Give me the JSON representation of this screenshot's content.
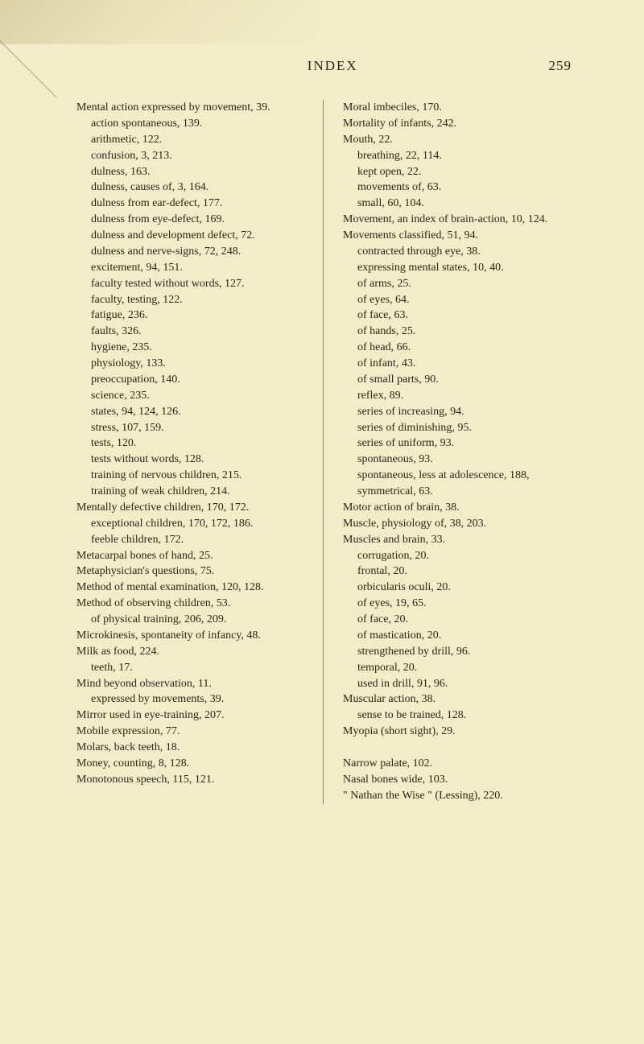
{
  "header": {
    "title": "INDEX",
    "pageNumber": "259"
  },
  "leftColumn": {
    "entries": [
      {
        "text": "Mental action expressed by movement, 39.",
        "type": "entry"
      },
      {
        "text": "action spontaneous, 139.",
        "type": "sub"
      },
      {
        "text": "arithmetic, 122.",
        "type": "sub"
      },
      {
        "text": "confusion, 3, 213.",
        "type": "sub"
      },
      {
        "text": "dulness, 163.",
        "type": "sub"
      },
      {
        "text": "dulness, causes of, 3, 164.",
        "type": "sub"
      },
      {
        "text": "dulness from ear-defect, 177.",
        "type": "sub"
      },
      {
        "text": "dulness from eye-defect, 169.",
        "type": "sub"
      },
      {
        "text": "dulness and development defect, 72.",
        "type": "sub"
      },
      {
        "text": "dulness and nerve-signs, 72, 248.",
        "type": "sub"
      },
      {
        "text": "excitement, 94, 151.",
        "type": "sub"
      },
      {
        "text": "faculty tested without words, 127.",
        "type": "sub"
      },
      {
        "text": "faculty, testing, 122.",
        "type": "sub"
      },
      {
        "text": "fatigue, 236.",
        "type": "sub"
      },
      {
        "text": "faults, 326.",
        "type": "sub"
      },
      {
        "text": "hygiene, 235.",
        "type": "sub"
      },
      {
        "text": "physiology, 133.",
        "type": "sub"
      },
      {
        "text": "preoccupation, 140.",
        "type": "sub"
      },
      {
        "text": "science, 235.",
        "type": "sub"
      },
      {
        "text": "states, 94, 124, 126.",
        "type": "sub"
      },
      {
        "text": "stress, 107, 159.",
        "type": "sub"
      },
      {
        "text": "tests, 120.",
        "type": "sub"
      },
      {
        "text": "tests without words, 128.",
        "type": "sub"
      },
      {
        "text": "training of nervous children, 215.",
        "type": "sub"
      },
      {
        "text": "training of weak children, 214.",
        "type": "sub"
      },
      {
        "text": "Mentally defective children, 170, 172.",
        "type": "entry"
      },
      {
        "text": "exceptional children, 170, 172, 186.",
        "type": "sub"
      },
      {
        "text": "feeble children, 172.",
        "type": "sub"
      },
      {
        "text": "Metacarpal bones of hand, 25.",
        "type": "entry"
      },
      {
        "text": "Metaphysician's questions, 75.",
        "type": "entry"
      },
      {
        "text": "Method of mental examination, 120, 128.",
        "type": "entry"
      },
      {
        "text": "Method of observing children, 53.",
        "type": "entry"
      },
      {
        "text": "of physical training, 206, 209.",
        "type": "sub"
      },
      {
        "text": "Microkinesis, spontaneity of infancy, 48.",
        "type": "entry"
      },
      {
        "text": "Milk as food, 224.",
        "type": "entry"
      },
      {
        "text": "teeth, 17.",
        "type": "sub"
      },
      {
        "text": "Mind beyond observation, 11.",
        "type": "entry"
      },
      {
        "text": "expressed by movements, 39.",
        "type": "sub"
      },
      {
        "text": "Mirror used in eye-training, 207.",
        "type": "entry"
      },
      {
        "text": "Mobile expression, 77.",
        "type": "entry"
      },
      {
        "text": "Molars, back teeth, 18.",
        "type": "entry"
      },
      {
        "text": "Money, counting, 8, 128.",
        "type": "entry"
      },
      {
        "text": "Monotonous speech, 115, 121.",
        "type": "entry"
      }
    ]
  },
  "rightColumn": {
    "entries": [
      {
        "text": "Moral imbeciles, 170.",
        "type": "entry"
      },
      {
        "text": "Mortality of infants, 242.",
        "type": "entry"
      },
      {
        "text": "Mouth, 22.",
        "type": "entry"
      },
      {
        "text": "breathing, 22, 114.",
        "type": "sub"
      },
      {
        "text": "kept open, 22.",
        "type": "sub"
      },
      {
        "text": "movements of, 63.",
        "type": "sub"
      },
      {
        "text": "small, 60, 104.",
        "type": "sub"
      },
      {
        "text": "Movement, an index of brain-action, 10, 124.",
        "type": "entry"
      },
      {
        "text": "Movements classified, 51, 94.",
        "type": "entry"
      },
      {
        "text": "contracted through eye, 38.",
        "type": "sub"
      },
      {
        "text": "expressing mental states, 10, 40.",
        "type": "sub"
      },
      {
        "text": "of arms, 25.",
        "type": "sub"
      },
      {
        "text": "of eyes, 64.",
        "type": "sub"
      },
      {
        "text": "of face, 63.",
        "type": "sub"
      },
      {
        "text": "of hands, 25.",
        "type": "sub"
      },
      {
        "text": "of head, 66.",
        "type": "sub"
      },
      {
        "text": "of infant, 43.",
        "type": "sub"
      },
      {
        "text": "of small parts, 90.",
        "type": "sub"
      },
      {
        "text": "reflex, 89.",
        "type": "sub"
      },
      {
        "text": "series of increasing, 94.",
        "type": "sub"
      },
      {
        "text": "series of diminishing, 95.",
        "type": "sub"
      },
      {
        "text": "series of uniform, 93.",
        "type": "sub"
      },
      {
        "text": "spontaneous, 93.",
        "type": "sub"
      },
      {
        "text": "spontaneous, less at adolescence, 188,",
        "type": "sub"
      },
      {
        "text": "symmetrical, 63.",
        "type": "sub"
      },
      {
        "text": "Motor action of brain, 38.",
        "type": "entry"
      },
      {
        "text": "Muscle, physiology of, 38, 203.",
        "type": "entry"
      },
      {
        "text": "Muscles and brain, 33.",
        "type": "entry"
      },
      {
        "text": "corrugation, 20.",
        "type": "sub"
      },
      {
        "text": "frontal, 20.",
        "type": "sub"
      },
      {
        "text": "orbicularis oculi, 20.",
        "type": "sub"
      },
      {
        "text": "of eyes, 19, 65.",
        "type": "sub"
      },
      {
        "text": "of face, 20.",
        "type": "sub"
      },
      {
        "text": "of mastication, 20.",
        "type": "sub"
      },
      {
        "text": "strengthened by drill, 96.",
        "type": "sub"
      },
      {
        "text": "temporal, 20.",
        "type": "sub"
      },
      {
        "text": "used in drill, 91, 96.",
        "type": "sub"
      },
      {
        "text": "Muscular action, 38.",
        "type": "entry"
      },
      {
        "text": "sense to be trained, 128.",
        "type": "sub"
      },
      {
        "text": "Myopia (short sight), 29.",
        "type": "entry"
      },
      {
        "text": " ",
        "type": "entry"
      },
      {
        "text": "Narrow palate, 102.",
        "type": "entry"
      },
      {
        "text": "Nasal bones wide, 103.",
        "type": "entry"
      },
      {
        "text": "\" Nathan the Wise \" (Lessing), 220.",
        "type": "entry"
      }
    ]
  }
}
